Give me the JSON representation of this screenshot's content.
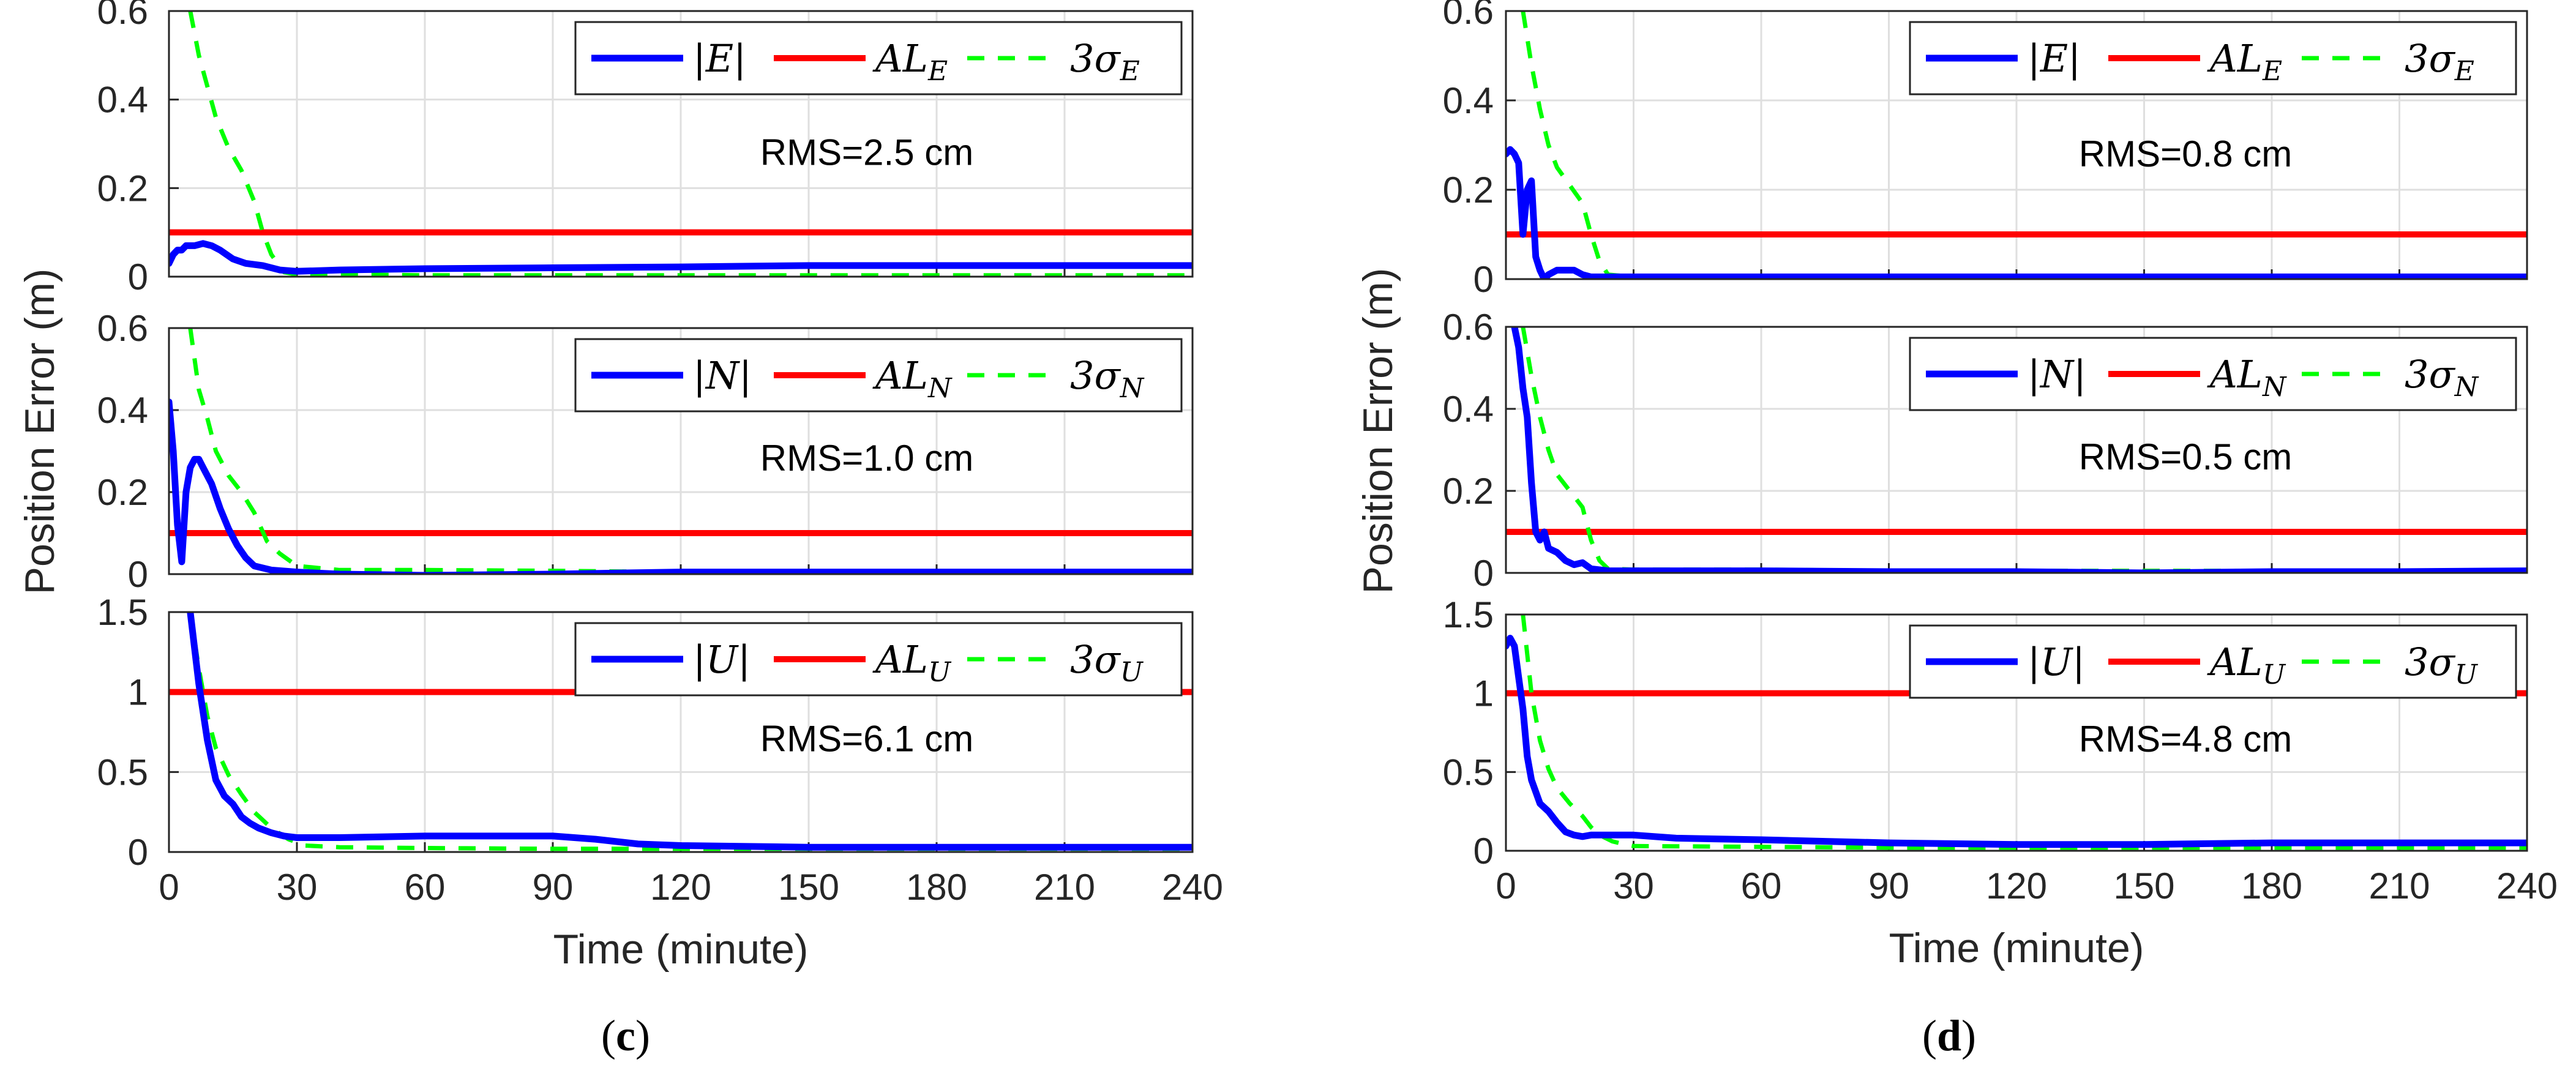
{
  "chart_data": [
    {
      "panel": "(c)",
      "panel_letter": "c",
      "type": "line",
      "xlabel": "Time (minute)",
      "ylabel": "Position Error (m)",
      "xlim": [
        0,
        240
      ],
      "xticks": [
        "0",
        "30",
        "60",
        "90",
        "120",
        "150",
        "180",
        "210",
        "240"
      ],
      "subplots": [
        {
          "component": "E",
          "ylim": [
            0,
            0.6
          ],
          "yticks": [
            "0",
            "0.2",
            "0.4",
            "0.6"
          ],
          "rms_label": "RMS=2.5 cm",
          "legend": [
            "|E|",
            "AL_E",
            "3σ_E"
          ],
          "alert_limit": 0.1,
          "series": [
            {
              "name": "|E|",
              "color": "#0000ff",
              "style": "solid",
              "x": [
                0,
                1,
                2,
                3,
                4,
                6,
                8,
                10,
                12,
                15,
                18,
                22,
                26,
                30,
                40,
                60,
                90,
                120,
                150,
                180,
                210,
                240
              ],
              "y": [
                0.03,
                0.05,
                0.06,
                0.06,
                0.07,
                0.07,
                0.075,
                0.07,
                0.06,
                0.04,
                0.03,
                0.025,
                0.015,
                0.012,
                0.015,
                0.018,
                0.02,
                0.022,
                0.025,
                0.025,
                0.025,
                0.025
              ]
            },
            {
              "name": "3σ_E",
              "color": "#00ff00",
              "style": "dashed",
              "x": [
                5,
                7,
                9,
                11,
                14,
                17,
                20,
                22,
                24,
                27,
                30,
                40,
                60,
                90,
                120,
                150,
                180,
                210,
                240
              ],
              "y": [
                0.6,
                0.5,
                0.43,
                0.36,
                0.29,
                0.24,
                0.17,
                0.1,
                0.05,
                0.01,
                0.005,
                0.005,
                0.003,
                0.003,
                0.003,
                0.003,
                0.003,
                0.003,
                0.003
              ]
            }
          ]
        },
        {
          "component": "N",
          "ylim": [
            0,
            0.6
          ],
          "yticks": [
            "0",
            "0.2",
            "0.4",
            "0.6"
          ],
          "rms_label": "RMS=1.0 cm",
          "legend": [
            "|N|",
            "AL_N",
            "3σ_N"
          ],
          "alert_limit": 0.1,
          "series": [
            {
              "name": "|N|",
              "color": "#0000ff",
              "style": "solid",
              "x": [
                0,
                1,
                2,
                3,
                4,
                5,
                6,
                7,
                8,
                10,
                12,
                14,
                16,
                18,
                20,
                24,
                30,
                40,
                60,
                90,
                120,
                150,
                180,
                210,
                240
              ],
              "y": [
                0.42,
                0.3,
                0.12,
                0.03,
                0.2,
                0.26,
                0.28,
                0.28,
                0.26,
                0.22,
                0.16,
                0.11,
                0.07,
                0.04,
                0.02,
                0.01,
                0.005,
                0.0,
                -0.003,
                0.0,
                0.005,
                0.005,
                0.005,
                0.005,
                0.005
              ]
            },
            {
              "name": "3σ_N",
              "color": "#00ff00",
              "style": "dashed",
              "x": [
                5,
                7,
                9,
                11,
                14,
                17,
                20,
                23,
                26,
                30,
                40,
                60,
                90,
                120,
                150,
                180,
                210,
                240
              ],
              "y": [
                0.6,
                0.45,
                0.38,
                0.3,
                0.24,
                0.2,
                0.15,
                0.08,
                0.05,
                0.02,
                0.01,
                0.01,
                0.008,
                0.005,
                0.005,
                0.005,
                0.005,
                0.005
              ]
            }
          ]
        },
        {
          "component": "U",
          "ylim": [
            0,
            1.5
          ],
          "yticks": [
            "0",
            "0.5",
            "1",
            "1.5"
          ],
          "rms_label": "RMS=6.1 cm",
          "legend": [
            "|U|",
            "AL_U",
            "3σ_U"
          ],
          "alert_limit": 1.0,
          "series": [
            {
              "name": "|U|",
              "color": "#0000ff",
              "style": "solid",
              "x": [
                5,
                7,
                9,
                11,
                13,
                15,
                17,
                19,
                21,
                24,
                27,
                30,
                40,
                60,
                80,
                90,
                100,
                110,
                120,
                150,
                180,
                210,
                240
              ],
              "y": [
                1.5,
                1.05,
                0.7,
                0.45,
                0.35,
                0.3,
                0.22,
                0.18,
                0.15,
                0.12,
                0.1,
                0.09,
                0.09,
                0.1,
                0.1,
                0.1,
                0.08,
                0.05,
                0.04,
                0.03,
                0.03,
                0.03,
                0.03
              ]
            },
            {
              "name": "3σ_U",
              "color": "#00ff00",
              "style": "dashed",
              "x": [
                5,
                7,
                9,
                11,
                14,
                17,
                20,
                24,
                28,
                32,
                40,
                60,
                90,
                120,
                150,
                180,
                210,
                240
              ],
              "y": [
                1.5,
                1.15,
                0.85,
                0.65,
                0.48,
                0.36,
                0.25,
                0.15,
                0.08,
                0.04,
                0.03,
                0.025,
                0.02,
                0.02,
                0.02,
                0.02,
                0.02,
                0.02
              ]
            }
          ]
        }
      ]
    },
    {
      "panel": "(d)",
      "panel_letter": "d",
      "type": "line",
      "xlabel": "Time (minute)",
      "ylabel": "Position Error (m)",
      "xlim": [
        0,
        240
      ],
      "xticks": [
        "0",
        "30",
        "60",
        "90",
        "120",
        "150",
        "180",
        "210",
        "240"
      ],
      "subplots": [
        {
          "component": "E",
          "ylim": [
            0,
            0.6
          ],
          "yticks": [
            "0",
            "0.2",
            "0.4",
            "0.6"
          ],
          "rms_label": "RMS=0.8 cm",
          "legend": [
            "|E|",
            "AL_E",
            "3σ_E"
          ],
          "alert_limit": 0.1,
          "series": [
            {
              "name": "|E|",
              "color": "#0000ff",
              "style": "solid",
              "x": [
                0,
                1,
                2,
                3,
                4,
                5,
                6,
                7,
                8,
                9,
                10,
                12,
                14,
                16,
                18,
                20,
                24,
                30,
                60,
                90,
                120,
                150,
                180,
                210,
                240
              ],
              "y": [
                0.28,
                0.29,
                0.28,
                0.26,
                0.1,
                0.2,
                0.22,
                0.05,
                0.02,
                0.0,
                0.01,
                0.02,
                0.02,
                0.02,
                0.01,
                0.005,
                0.005,
                0.005,
                0.005,
                0.005,
                0.005,
                0.005,
                0.005,
                0.005,
                0.005
              ]
            },
            {
              "name": "3σ_E",
              "color": "#00ff00",
              "style": "dashed",
              "x": [
                4,
                6,
                8,
                10,
                12,
                15,
                18,
                20,
                22,
                24,
                30,
                60,
                90,
                120,
                150,
                180,
                210,
                240
              ],
              "y": [
                0.6,
                0.48,
                0.38,
                0.3,
                0.25,
                0.21,
                0.17,
                0.1,
                0.04,
                0.01,
                0.005,
                0.003,
                0.003,
                0.003,
                0.003,
                0.003,
                0.003,
                0.003
              ]
            }
          ]
        },
        {
          "component": "N",
          "ylim": [
            0,
            0.6
          ],
          "yticks": [
            "0",
            "0.2",
            "0.4",
            "0.6"
          ],
          "rms_label": "RMS=0.5 cm",
          "legend": [
            "|N|",
            "AL_N",
            "3σ_N"
          ],
          "alert_limit": 0.1,
          "series": [
            {
              "name": "|N|",
              "color": "#0000ff",
              "style": "solid",
              "x": [
                2,
                3,
                4,
                5,
                6,
                7,
                8,
                9,
                10,
                12,
                14,
                16,
                18,
                20,
                24,
                30,
                60,
                90,
                120,
                150,
                180,
                210,
                240
              ],
              "y": [
                0.6,
                0.55,
                0.45,
                0.38,
                0.22,
                0.1,
                0.08,
                0.1,
                0.06,
                0.05,
                0.03,
                0.02,
                0.025,
                0.01,
                0.005,
                0.005,
                0.005,
                0.003,
                0.003,
                0.0,
                0.003,
                0.003,
                0.005
              ]
            },
            {
              "name": "3σ_N",
              "color": "#00ff00",
              "style": "dashed",
              "x": [
                4,
                6,
                8,
                10,
                12,
                15,
                18,
                20,
                22,
                24,
                30,
                60,
                90,
                120,
                150,
                180,
                210,
                240
              ],
              "y": [
                0.6,
                0.48,
                0.38,
                0.3,
                0.24,
                0.2,
                0.16,
                0.08,
                0.03,
                0.01,
                0.008,
                0.008,
                0.005,
                0.005,
                0.005,
                0.005,
                0.005,
                0.005
              ]
            }
          ]
        },
        {
          "component": "U",
          "ylim": [
            0,
            1.5
          ],
          "yticks": [
            "0",
            "0.5",
            "1",
            "1.5"
          ],
          "rms_label": "RMS=4.8 cm",
          "legend": [
            "|U|",
            "AL_U",
            "3σ_U"
          ],
          "alert_limit": 1.0,
          "series": [
            {
              "name": "|U|",
              "color": "#0000ff",
              "style": "solid",
              "x": [
                0,
                1,
                2,
                3,
                4,
                5,
                6,
                8,
                10,
                12,
                14,
                16,
                18,
                20,
                24,
                30,
                40,
                60,
                90,
                120,
                150,
                180,
                210,
                240
              ],
              "y": [
                1.3,
                1.35,
                1.3,
                1.1,
                0.9,
                0.6,
                0.45,
                0.3,
                0.25,
                0.18,
                0.12,
                0.1,
                0.09,
                0.1,
                0.1,
                0.1,
                0.08,
                0.07,
                0.05,
                0.04,
                0.04,
                0.05,
                0.05,
                0.05
              ]
            },
            {
              "name": "3σ_U",
              "color": "#00ff00",
              "style": "dashed",
              "x": [
                4,
                6,
                8,
                10,
                12,
                15,
                18,
                20,
                22,
                25,
                28,
                30,
                60,
                90,
                120,
                150,
                180,
                210,
                240
              ],
              "y": [
                1.5,
                1.0,
                0.7,
                0.52,
                0.4,
                0.3,
                0.22,
                0.15,
                0.1,
                0.06,
                0.04,
                0.03,
                0.025,
                0.02,
                0.02,
                0.02,
                0.02,
                0.02,
                0.02
              ]
            }
          ]
        }
      ]
    }
  ],
  "colors": {
    "error": "#0000ff",
    "alert_limit": "#ff0000",
    "sigma": "#00ff00",
    "grid": "#dfdfdf",
    "axis": "#262626"
  }
}
